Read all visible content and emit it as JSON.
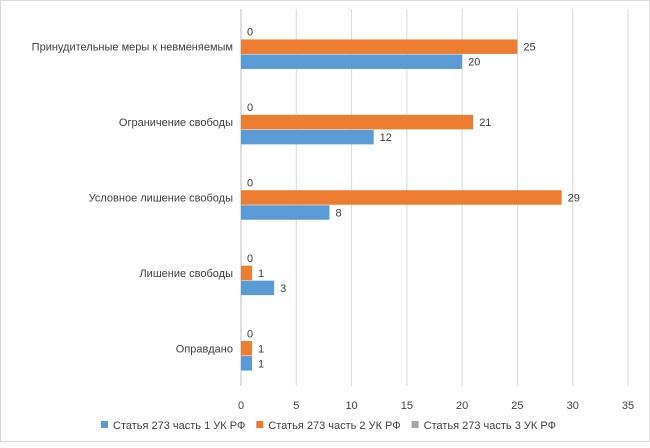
{
  "chart_data": {
    "type": "bar",
    "orientation": "horizontal",
    "title": "",
    "xlabel": "",
    "ylabel": "",
    "categories": [
      "Принудительные меры к невменяемым",
      "Ограничение свободы",
      "Условное лишение свободы",
      "Лишение свободы",
      "Оправдано"
    ],
    "series": [
      {
        "name": "Статья 273 часть 1 УК РФ",
        "color": "#5b9bd5",
        "values": [
          20,
          12,
          8,
          3,
          1
        ]
      },
      {
        "name": "Статья 273 часть 2 УК РФ",
        "color": "#ed7d31",
        "values": [
          25,
          21,
          29,
          1,
          1
        ]
      },
      {
        "name": "Статья 273 часть 3 УК РФ",
        "color": "#a5a5a5",
        "values": [
          0,
          0,
          0,
          0,
          0
        ]
      }
    ],
    "xlim": [
      0,
      35
    ],
    "xticks": [
      0,
      5,
      10,
      15,
      20,
      25,
      30,
      35
    ],
    "grid": true,
    "legend_position": "bottom",
    "data_labels": true
  }
}
